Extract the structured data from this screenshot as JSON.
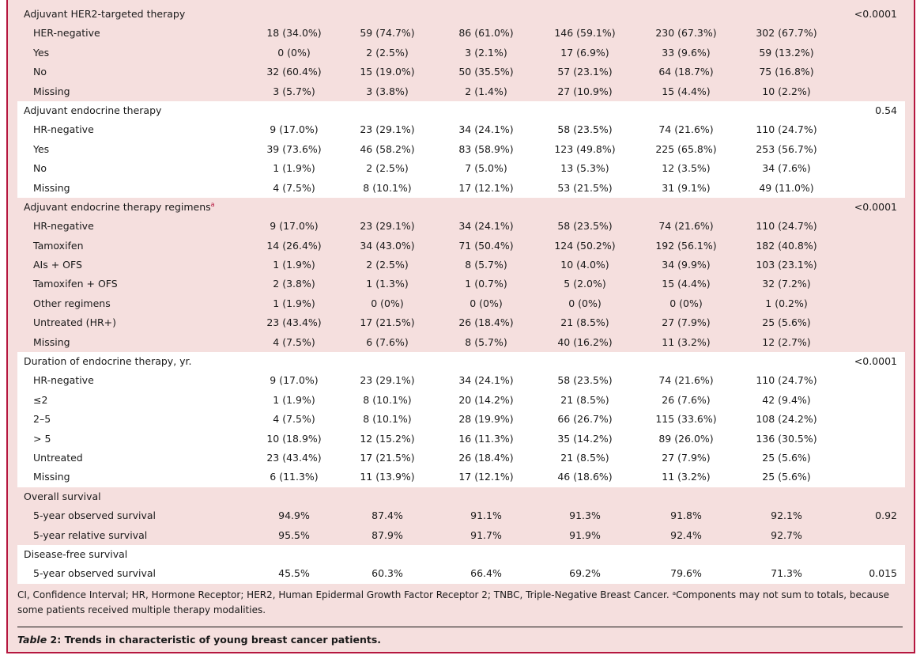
{
  "groups": [
    {
      "title": "Adjuvant HER2-targeted therapy",
      "sup": "",
      "p": "<0.0001",
      "bg": "pink",
      "rows": [
        {
          "label": "HER-negative",
          "values": [
            "18 (34.0%)",
            "59 (74.7%)",
            "86 (61.0%)",
            "146 (59.1%)",
            "230 (67.3%)",
            "302 (67.7%)"
          ]
        },
        {
          "label": "Yes",
          "values": [
            "0 (0%)",
            "2 (2.5%)",
            "3 (2.1%)",
            "17 (6.9%)",
            "33 (9.6%)",
            "59 (13.2%)"
          ]
        },
        {
          "label": "No",
          "values": [
            "32 (60.4%)",
            "15 (19.0%)",
            "50 (35.5%)",
            "57 (23.1%)",
            "64 (18.7%)",
            "75 (16.8%)"
          ]
        },
        {
          "label": "Missing",
          "values": [
            "3 (5.7%)",
            "3 (3.8%)",
            "2 (1.4%)",
            "27 (10.9%)",
            "15 (4.4%)",
            "10 (2.2%)"
          ]
        }
      ]
    },
    {
      "title": "Adjuvant endocrine therapy",
      "sup": "",
      "p": "0.54",
      "bg": "white",
      "rows": [
        {
          "label": "HR-negative",
          "values": [
            "9 (17.0%)",
            "23 (29.1%)",
            "34 (24.1%)",
            "58 (23.5%)",
            "74 (21.6%)",
            "110 (24.7%)"
          ]
        },
        {
          "label": "Yes",
          "values": [
            "39 (73.6%)",
            "46 (58.2%)",
            "83 (58.9%)",
            "123 (49.8%)",
            "225 (65.8%)",
            "253 (56.7%)"
          ]
        },
        {
          "label": "No",
          "values": [
            "1 (1.9%)",
            "2 (2.5%)",
            "7 (5.0%)",
            "13 (5.3%)",
            "12 (3.5%)",
            "34 (7.6%)"
          ]
        },
        {
          "label": "Missing",
          "values": [
            "4 (7.5%)",
            "8 (10.1%)",
            "17 (12.1%)",
            "53 (21.5%)",
            "31 (9.1%)",
            "49 (11.0%)"
          ]
        }
      ]
    },
    {
      "title": "Adjuvant endocrine therapy regimens",
      "sup": "a",
      "p": "<0.0001",
      "bg": "pink",
      "rows": [
        {
          "label": "HR-negative",
          "values": [
            "9 (17.0%)",
            "23 (29.1%)",
            "34 (24.1%)",
            "58 (23.5%)",
            "74 (21.6%)",
            "110 (24.7%)"
          ]
        },
        {
          "label": "Tamoxifen",
          "values": [
            "14 (26.4%)",
            "34 (43.0%)",
            "71 (50.4%)",
            "124 (50.2%)",
            "192 (56.1%)",
            "182 (40.8%)"
          ]
        },
        {
          "label": "AIs + OFS",
          "values": [
            "1 (1.9%)",
            "2 (2.5%)",
            "8 (5.7%)",
            "10 (4.0%)",
            "34 (9.9%)",
            "103 (23.1%)"
          ]
        },
        {
          "label": "Tamoxifen + OFS",
          "values": [
            "2 (3.8%)",
            "1 (1.3%)",
            "1 (0.7%)",
            "5 (2.0%)",
            "15 (4.4%)",
            "32 (7.2%)"
          ]
        },
        {
          "label": "Other regimens",
          "values": [
            "1 (1.9%)",
            "0 (0%)",
            "0 (0%)",
            "0 (0%)",
            "0 (0%)",
            "1 (0.2%)"
          ]
        },
        {
          "label": "Untreated (HR+)",
          "values": [
            "23 (43.4%)",
            "17 (21.5%)",
            "26 (18.4%)",
            "21 (8.5%)",
            "27 (7.9%)",
            "25 (5.6%)"
          ]
        },
        {
          "label": "Missing",
          "values": [
            "4 (7.5%)",
            "6 (7.6%)",
            "8 (5.7%)",
            "40 (16.2%)",
            "11 (3.2%)",
            "12 (2.7%)"
          ]
        }
      ]
    },
    {
      "title": "Duration of endocrine therapy, yr.",
      "sup": "",
      "p": "<0.0001",
      "bg": "white",
      "rows": [
        {
          "label": "HR-negative",
          "values": [
            "9 (17.0%)",
            "23 (29.1%)",
            "34 (24.1%)",
            "58 (23.5%)",
            "74 (21.6%)",
            "110 (24.7%)"
          ]
        },
        {
          "label": "≤2",
          "values": [
            "1 (1.9%)",
            "8 (10.1%)",
            "20 (14.2%)",
            "21 (8.5%)",
            "26 (7.6%)",
            "42 (9.4%)"
          ]
        },
        {
          "label": "2–5",
          "values": [
            "4 (7.5%)",
            "8 (10.1%)",
            "28 (19.9%)",
            "66 (26.7%)",
            "115 (33.6%)",
            "108 (24.2%)"
          ]
        },
        {
          "label": " > 5",
          "values": [
            "10 (18.9%)",
            "12 (15.2%)",
            "16 (11.3%)",
            "35 (14.2%)",
            "89 (26.0%)",
            "136 (30.5%)"
          ]
        },
        {
          "label": "Untreated",
          "values": [
            "23 (43.4%)",
            "17 (21.5%)",
            "26 (18.4%)",
            "21 (8.5%)",
            "27 (7.9%)",
            "25 (5.6%)"
          ]
        },
        {
          "label": "Missing",
          "values": [
            "6 (11.3%)",
            "11 (13.9%)",
            "17 (12.1%)",
            "46 (18.6%)",
            "11 (3.2%)",
            "25 (5.6%)"
          ]
        }
      ]
    },
    {
      "title": "Overall survival",
      "sup": "",
      "p": "",
      "bg": "pink",
      "rows": [
        {
          "label": "5-year observed survival",
          "values": [
            "94.9%",
            "87.4%",
            "91.1%",
            "91.3%",
            "91.8%",
            "92.1%"
          ],
          "p": "0.92"
        },
        {
          "label": "5-year relative survival",
          "values": [
            "95.5%",
            "87.9%",
            "91.7%",
            "91.9%",
            "92.4%",
            "92.7%"
          ]
        }
      ]
    },
    {
      "title": "Disease-free survival",
      "sup": "",
      "p": "",
      "bg": "white",
      "rows": [
        {
          "label": "5-year observed survival",
          "values": [
            "45.5%",
            "60.3%",
            "66.4%",
            "69.2%",
            "79.6%",
            "71.3%"
          ],
          "p": "0.015"
        }
      ]
    }
  ],
  "footnote": "CI, Confidence Interval; HR, Hormone Receptor; HER2, Human Epidermal Growth Factor Receptor 2; TNBC, Triple-Negative Breast Cancer. ᵃComponents may not sum to totals, because some patients received multiple therapy modalities.",
  "caption": {
    "label": "Table",
    "number": " 2:",
    "text": " Trends in characteristic of young breast cancer patients."
  }
}
